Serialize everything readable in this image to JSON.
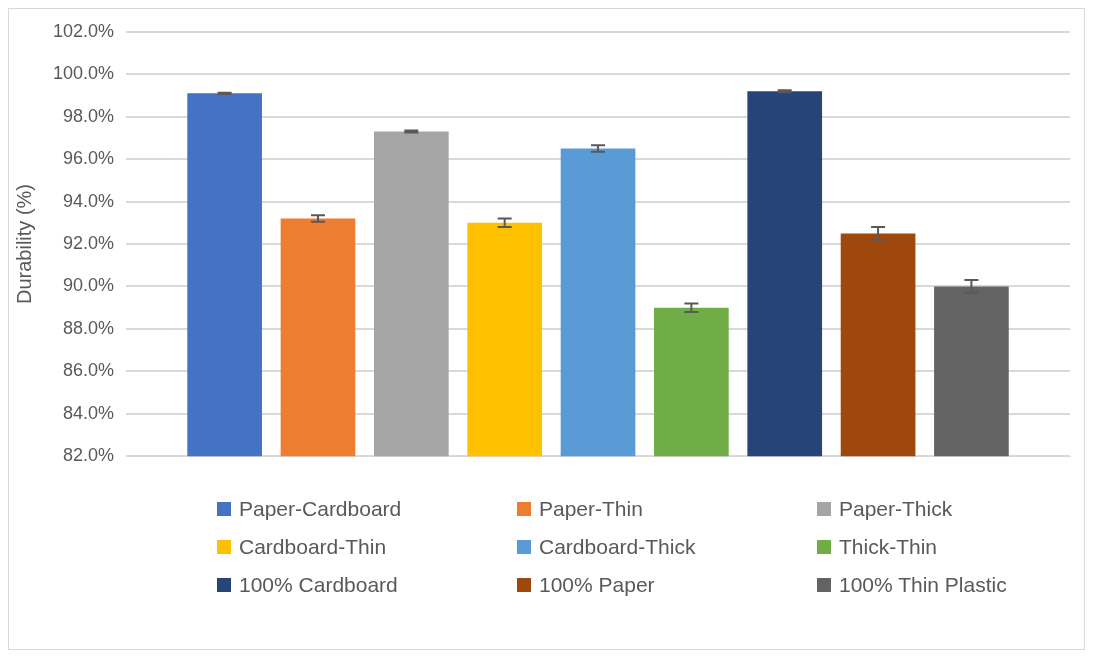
{
  "chart_data": {
    "type": "bar",
    "ylabel": "Durability (%)",
    "categories": [
      null
    ],
    "series": [
      {
        "name": "Paper-Cardboard",
        "color": "#4472c4",
        "values": [
          99.1
        ],
        "errors": [
          0.03
        ]
      },
      {
        "name": "Paper-Thin",
        "color": "#ed7d31",
        "values": [
          93.2
        ],
        "errors": [
          0.15
        ]
      },
      {
        "name": "Paper-Thick",
        "color": "#a5a5a5",
        "values": [
          97.3
        ],
        "errors": [
          0.05
        ]
      },
      {
        "name": "Cardboard-Thin",
        "color": "#ffc000",
        "values": [
          93.0
        ],
        "errors": [
          0.2
        ]
      },
      {
        "name": "Cardboard-Thick",
        "color": "#5b9bd5",
        "values": [
          96.5
        ],
        "errors": [
          0.15
        ]
      },
      {
        "name": "Thick-Thin",
        "color": "#70ad47",
        "values": [
          89.0
        ],
        "errors": [
          0.2
        ]
      },
      {
        "name": "100% Cardboard",
        "color": "#264478",
        "values": [
          99.2
        ],
        "errors": [
          0.05
        ]
      },
      {
        "name": "100% Paper",
        "color": "#9e480e",
        "values": [
          92.5
        ],
        "errors": [
          0.3
        ]
      },
      {
        "name": "100% Thin Plastic",
        "color": "#636363",
        "values": [
          90.0
        ],
        "errors": [
          0.3
        ]
      }
    ],
    "ylim": [
      82,
      102
    ],
    "yticks": [
      {
        "value": 82,
        "label": "82.0%"
      },
      {
        "value": 84,
        "label": "84.0%"
      },
      {
        "value": 86,
        "label": "86.0%"
      },
      {
        "value": 88,
        "label": "88.0%"
      },
      {
        "value": 90,
        "label": "90.0%"
      },
      {
        "value": 92,
        "label": "92.0%"
      },
      {
        "value": 94,
        "label": "94.0%"
      },
      {
        "value": 96,
        "label": "96.0%"
      },
      {
        "value": 98,
        "label": "98.0%"
      },
      {
        "value": 100,
        "label": "100.0%"
      },
      {
        "value": 102,
        "label": "102.0%"
      }
    ],
    "grid": "y",
    "legend": "bottom"
  }
}
